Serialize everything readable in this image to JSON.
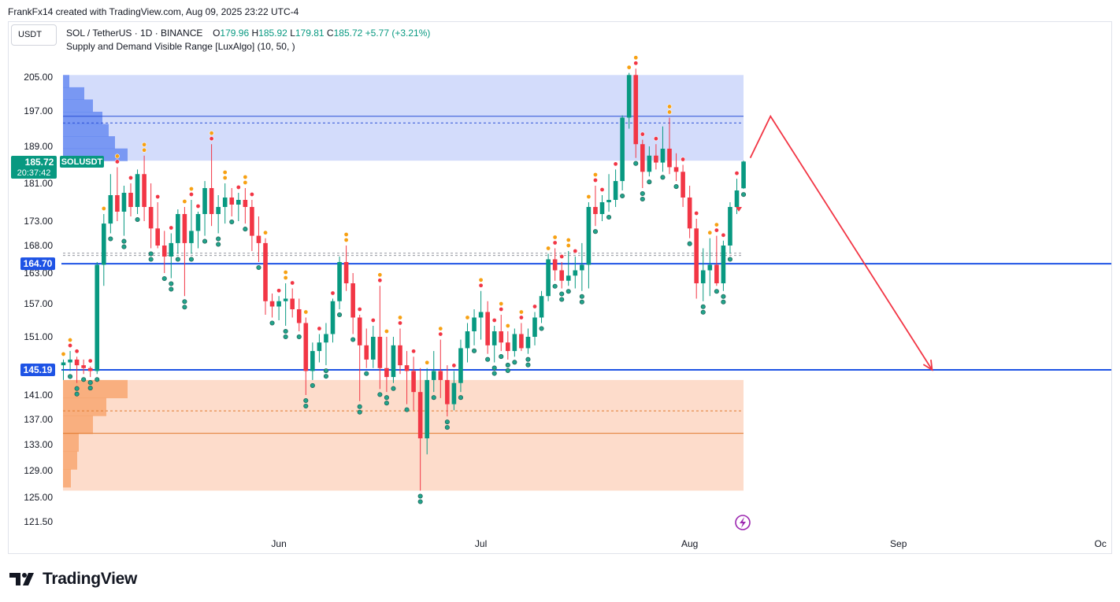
{
  "header": {
    "caption": "FrankFx14 created with TradingView.com, Aug 09, 2025 23:22 UTC-4"
  },
  "toolbar": {
    "currency": "USDT"
  },
  "legend": {
    "symbol": "SOL / TetherUS · 1D · BINANCE",
    "o_label": "O",
    "o": "179.96",
    "h_label": "H",
    "h": "185.92",
    "l_label": "L",
    "l": "179.81",
    "c_label": "C",
    "c": "185.72",
    "change": "+5.77 (+3.21%)",
    "indicator": "Supply and Demand Visible Range [LuxAlgo] (10, 50, )"
  },
  "price_tag": {
    "price": "185.72",
    "countdown": "20:37:42",
    "symbol": "SOLUSDT"
  },
  "level_labels": [
    {
      "price": 164.7,
      "text": "164.70"
    },
    {
      "price": 145.19,
      "text": "145.19"
    }
  ],
  "footer": {
    "brand": "TradingView"
  },
  "colors": {
    "up": "#089981",
    "down": "#f23645",
    "supply_zone": "#d3dcfb",
    "supply_profile": "#5b82f0",
    "demand_zone": "#fddccb",
    "demand_profile": "#f7a066",
    "level_line": "#1e53e5",
    "projection": "#f23645",
    "dot_orange": "#f7a113"
  },
  "chart_data": {
    "type": "candlestick",
    "symbol": "SOL / TetherUS",
    "timeframe": "1D",
    "y_ticks": [
      205.0,
      197.0,
      189.0,
      181.0,
      173.0,
      168.0,
      163.0,
      157.0,
      151.0,
      145.19,
      141.0,
      137.0,
      133.0,
      129.0,
      125.0,
      121.5
    ],
    "x_labels": [
      {
        "date": "2025-06-01",
        "label": "Jun"
      },
      {
        "date": "2025-07-01",
        "label": "Jul"
      },
      {
        "date": "2025-08-01",
        "label": "Aug"
      },
      {
        "date": "2025-09-01",
        "label": "Sep"
      },
      {
        "date": "2025-10-01",
        "label": "Oc"
      }
    ],
    "ohlc": [
      {
        "d": "2025-04-30",
        "o": 146.0,
        "h": 147.0,
        "l": 143.5,
        "c": 146.5
      },
      {
        "d": "2025-05-01",
        "o": 146.5,
        "h": 148.5,
        "l": 145.0,
        "c": 147.0
      },
      {
        "d": "2025-05-02",
        "o": 147.0,
        "h": 147.5,
        "l": 143.0,
        "c": 146.0
      },
      {
        "d": "2025-05-03",
        "o": 146.0,
        "h": 147.0,
        "l": 144.5,
        "c": 145.5
      },
      {
        "d": "2025-05-04",
        "o": 145.5,
        "h": 145.8,
        "l": 144.0,
        "c": 145.0
      },
      {
        "d": "2025-05-05",
        "o": 145.0,
        "h": 165.0,
        "l": 144.5,
        "c": 164.5
      },
      {
        "d": "2025-05-06",
        "o": 164.5,
        "h": 174.5,
        "l": 160.5,
        "c": 172.5
      },
      {
        "d": "2025-05-07",
        "o": 172.5,
        "h": 183.0,
        "l": 170.5,
        "c": 178.5
      },
      {
        "d": "2025-05-08",
        "o": 178.5,
        "h": 184.5,
        "l": 173.0,
        "c": 175.0
      },
      {
        "d": "2025-05-09",
        "o": 175.0,
        "h": 180.5,
        "l": 170.0,
        "c": 179.0
      },
      {
        "d": "2025-05-10",
        "o": 179.0,
        "h": 181.0,
        "l": 174.0,
        "c": 176.0
      },
      {
        "d": "2025-05-11",
        "o": 176.0,
        "h": 184.0,
        "l": 174.5,
        "c": 183.0
      },
      {
        "d": "2025-05-12",
        "o": 183.0,
        "h": 187.0,
        "l": 173.0,
        "c": 176.0
      },
      {
        "d": "2025-05-13",
        "o": 176.0,
        "h": 181.0,
        "l": 167.5,
        "c": 171.5
      },
      {
        "d": "2025-05-14",
        "o": 171.5,
        "h": 177.0,
        "l": 167.5,
        "c": 168.0
      },
      {
        "d": "2025-05-15",
        "o": 168.0,
        "h": 171.0,
        "l": 163.0,
        "c": 166.0
      },
      {
        "d": "2025-05-16",
        "o": 166.0,
        "h": 170.5,
        "l": 162.0,
        "c": 168.5
      },
      {
        "d": "2025-05-17",
        "o": 168.5,
        "h": 175.5,
        "l": 166.5,
        "c": 174.5
      },
      {
        "d": "2025-05-18",
        "o": 174.5,
        "h": 176.0,
        "l": 158.5,
        "c": 168.5
      },
      {
        "d": "2025-05-19",
        "o": 168.5,
        "h": 177.5,
        "l": 166.5,
        "c": 171.0
      },
      {
        "d": "2025-05-20",
        "o": 171.0,
        "h": 175.0,
        "l": 167.5,
        "c": 174.5
      },
      {
        "d": "2025-05-21",
        "o": 174.5,
        "h": 181.5,
        "l": 170.0,
        "c": 180.0
      },
      {
        "d": "2025-05-22",
        "o": 180.0,
        "h": 189.5,
        "l": 172.0,
        "c": 174.5
      },
      {
        "d": "2025-05-23",
        "o": 174.5,
        "h": 178.5,
        "l": 170.5,
        "c": 176.0
      },
      {
        "d": "2025-05-24",
        "o": 176.0,
        "h": 181.0,
        "l": 172.5,
        "c": 178.0
      },
      {
        "d": "2025-05-25",
        "o": 178.0,
        "h": 180.0,
        "l": 174.0,
        "c": 176.5
      },
      {
        "d": "2025-05-26",
        "o": 176.5,
        "h": 179.0,
        "l": 173.0,
        "c": 177.5
      },
      {
        "d": "2025-05-27",
        "o": 177.5,
        "h": 180.0,
        "l": 172.5,
        "c": 176.0
      },
      {
        "d": "2025-05-28",
        "o": 176.0,
        "h": 177.5,
        "l": 167.0,
        "c": 170.0
      },
      {
        "d": "2025-05-29",
        "o": 170.0,
        "h": 174.0,
        "l": 165.0,
        "c": 168.5
      },
      {
        "d": "2025-05-30",
        "o": 168.5,
        "h": 169.5,
        "l": 155.0,
        "c": 157.5
      },
      {
        "d": "2025-05-31",
        "o": 157.5,
        "h": 159.0,
        "l": 154.5,
        "c": 156.5
      },
      {
        "d": "2025-06-01",
        "o": 156.5,
        "h": 158.5,
        "l": 154.0,
        "c": 157.5
      },
      {
        "d": "2025-06-02",
        "o": 157.5,
        "h": 161.0,
        "l": 153.0,
        "c": 158.0
      },
      {
        "d": "2025-06-03",
        "o": 158.0,
        "h": 160.0,
        "l": 154.5,
        "c": 156.0
      },
      {
        "d": "2025-06-04",
        "o": 156.0,
        "h": 158.0,
        "l": 152.0,
        "c": 153.5
      },
      {
        "d": "2025-06-05",
        "o": 153.5,
        "h": 154.5,
        "l": 141.0,
        "c": 145.0
      },
      {
        "d": "2025-06-06",
        "o": 145.0,
        "h": 150.0,
        "l": 143.5,
        "c": 148.5
      },
      {
        "d": "2025-06-07",
        "o": 148.5,
        "h": 151.5,
        "l": 146.5,
        "c": 150.0
      },
      {
        "d": "2025-06-08",
        "o": 150.0,
        "h": 153.5,
        "l": 146.0,
        "c": 151.5
      },
      {
        "d": "2025-06-09",
        "o": 151.5,
        "h": 158.0,
        "l": 150.0,
        "c": 157.5
      },
      {
        "d": "2025-06-10",
        "o": 157.5,
        "h": 166.0,
        "l": 156.0,
        "c": 165.0
      },
      {
        "d": "2025-06-11",
        "o": 165.0,
        "h": 168.0,
        "l": 159.5,
        "c": 161.0
      },
      {
        "d": "2025-06-12",
        "o": 161.0,
        "h": 163.0,
        "l": 151.5,
        "c": 154.5
      },
      {
        "d": "2025-06-13",
        "o": 154.5,
        "h": 155.0,
        "l": 140.0,
        "c": 149.5
      },
      {
        "d": "2025-06-14",
        "o": 149.5,
        "h": 152.5,
        "l": 145.5,
        "c": 147.0
      },
      {
        "d": "2025-06-15",
        "o": 147.0,
        "h": 153.0,
        "l": 145.5,
        "c": 151.0
      },
      {
        "d": "2025-06-16",
        "o": 151.0,
        "h": 160.5,
        "l": 142.0,
        "c": 145.5
      },
      {
        "d": "2025-06-17",
        "o": 145.5,
        "h": 151.0,
        "l": 141.5,
        "c": 144.0
      },
      {
        "d": "2025-06-18",
        "o": 144.0,
        "h": 151.0,
        "l": 143.0,
        "c": 149.5
      },
      {
        "d": "2025-06-19",
        "o": 149.5,
        "h": 152.5,
        "l": 144.5,
        "c": 146.0
      },
      {
        "d": "2025-06-20",
        "o": 146.0,
        "h": 148.5,
        "l": 139.5,
        "c": 145.0
      },
      {
        "d": "2025-06-21",
        "o": 145.0,
        "h": 147.5,
        "l": 138.5,
        "c": 141.5
      },
      {
        "d": "2025-06-22",
        "o": 141.5,
        "h": 145.5,
        "l": 126.0,
        "c": 134.0
      },
      {
        "d": "2025-06-23",
        "o": 134.0,
        "h": 145.5,
        "l": 131.5,
        "c": 143.5
      },
      {
        "d": "2025-06-24",
        "o": 143.5,
        "h": 148.5,
        "l": 141.5,
        "c": 145.0
      },
      {
        "d": "2025-06-25",
        "o": 145.0,
        "h": 150.5,
        "l": 140.5,
        "c": 143.5
      },
      {
        "d": "2025-06-26",
        "o": 143.5,
        "h": 146.0,
        "l": 137.5,
        "c": 139.5
      },
      {
        "d": "2025-06-27",
        "o": 139.5,
        "h": 145.0,
        "l": 138.5,
        "c": 143.0
      },
      {
        "d": "2025-06-28",
        "o": 143.0,
        "h": 150.5,
        "l": 141.5,
        "c": 149.0
      },
      {
        "d": "2025-06-29",
        "o": 149.0,
        "h": 153.5,
        "l": 146.5,
        "c": 152.0
      },
      {
        "d": "2025-06-30",
        "o": 152.0,
        "h": 156.0,
        "l": 149.5,
        "c": 154.5
      },
      {
        "d": "2025-07-01",
        "o": 154.5,
        "h": 159.5,
        "l": 150.5,
        "c": 155.5
      },
      {
        "d": "2025-07-02",
        "o": 155.5,
        "h": 157.5,
        "l": 148.0,
        "c": 149.5
      },
      {
        "d": "2025-07-03",
        "o": 149.5,
        "h": 153.0,
        "l": 146.5,
        "c": 152.0
      },
      {
        "d": "2025-07-04",
        "o": 152.0,
        "h": 155.0,
        "l": 148.5,
        "c": 150.0
      },
      {
        "d": "2025-07-05",
        "o": 150.0,
        "h": 152.0,
        "l": 147.0,
        "c": 148.5
      },
      {
        "d": "2025-07-06",
        "o": 148.5,
        "h": 152.5,
        "l": 147.5,
        "c": 151.5
      },
      {
        "d": "2025-07-07",
        "o": 151.5,
        "h": 153.5,
        "l": 148.5,
        "c": 149.0
      },
      {
        "d": "2025-07-08",
        "o": 149.0,
        "h": 152.5,
        "l": 148.0,
        "c": 151.0
      },
      {
        "d": "2025-07-09",
        "o": 151.0,
        "h": 155.5,
        "l": 149.5,
        "c": 154.5
      },
      {
        "d": "2025-07-10",
        "o": 154.5,
        "h": 159.5,
        "l": 153.5,
        "c": 158.5
      },
      {
        "d": "2025-07-11",
        "o": 158.5,
        "h": 166.5,
        "l": 157.5,
        "c": 165.5
      },
      {
        "d": "2025-07-12",
        "o": 165.5,
        "h": 167.5,
        "l": 161.5,
        "c": 163.5
      },
      {
        "d": "2025-07-13",
        "o": 163.5,
        "h": 165.0,
        "l": 160.0,
        "c": 161.5
      },
      {
        "d": "2025-07-14",
        "o": 161.5,
        "h": 167.0,
        "l": 160.5,
        "c": 162.5
      },
      {
        "d": "2025-07-15",
        "o": 162.5,
        "h": 166.0,
        "l": 160.0,
        "c": 163.5
      },
      {
        "d": "2025-07-16",
        "o": 163.5,
        "h": 168.5,
        "l": 159.5,
        "c": 164.5
      },
      {
        "d": "2025-07-17",
        "o": 164.5,
        "h": 177.0,
        "l": 160.0,
        "c": 176.0
      },
      {
        "d": "2025-07-18",
        "o": 176.0,
        "h": 180.5,
        "l": 172.0,
        "c": 174.5
      },
      {
        "d": "2025-07-19",
        "o": 174.5,
        "h": 178.5,
        "l": 173.0,
        "c": 177.0
      },
      {
        "d": "2025-07-20",
        "o": 177.0,
        "h": 183.0,
        "l": 175.0,
        "c": 177.5
      },
      {
        "d": "2025-07-21",
        "o": 177.5,
        "h": 184.0,
        "l": 176.0,
        "c": 181.5
      },
      {
        "d": "2025-07-22",
        "o": 181.5,
        "h": 196.0,
        "l": 179.5,
        "c": 195.5
      },
      {
        "d": "2025-07-23",
        "o": 195.5,
        "h": 206.0,
        "l": 193.0,
        "c": 205.5
      },
      {
        "d": "2025-07-24",
        "o": 205.5,
        "h": 207.0,
        "l": 186.5,
        "c": 189.5
      },
      {
        "d": "2025-07-25",
        "o": 189.5,
        "h": 190.5,
        "l": 180.0,
        "c": 183.5
      },
      {
        "d": "2025-07-26",
        "o": 183.5,
        "h": 189.0,
        "l": 182.5,
        "c": 187.0
      },
      {
        "d": "2025-07-27",
        "o": 187.0,
        "h": 189.5,
        "l": 184.0,
        "c": 185.5
      },
      {
        "d": "2025-07-28",
        "o": 185.5,
        "h": 193.5,
        "l": 183.5,
        "c": 188.5
      },
      {
        "d": "2025-07-29",
        "o": 188.5,
        "h": 195.5,
        "l": 183.0,
        "c": 184.5
      },
      {
        "d": "2025-07-30",
        "o": 184.5,
        "h": 187.5,
        "l": 181.5,
        "c": 183.5
      },
      {
        "d": "2025-07-31",
        "o": 183.5,
        "h": 185.0,
        "l": 176.0,
        "c": 178.0
      },
      {
        "d": "2025-08-01",
        "o": 178.0,
        "h": 180.5,
        "l": 169.5,
        "c": 171.5
      },
      {
        "d": "2025-08-02",
        "o": 171.5,
        "h": 173.5,
        "l": 158.0,
        "c": 161.0
      },
      {
        "d": "2025-08-03",
        "o": 161.0,
        "h": 167.5,
        "l": 157.5,
        "c": 163.5
      },
      {
        "d": "2025-08-04",
        "o": 163.5,
        "h": 169.5,
        "l": 158.5,
        "c": 164.5
      },
      {
        "d": "2025-08-05",
        "o": 164.5,
        "h": 170.0,
        "l": 160.5,
        "c": 161.0
      },
      {
        "d": "2025-08-06",
        "o": 161.0,
        "h": 169.0,
        "l": 159.5,
        "c": 168.0
      },
      {
        "d": "2025-08-07",
        "o": 168.0,
        "h": 177.0,
        "l": 166.5,
        "c": 176.0
      },
      {
        "d": "2025-08-08",
        "o": 176.0,
        "h": 182.0,
        "l": 174.5,
        "c": 179.5
      },
      {
        "d": "2025-08-09",
        "o": 179.96,
        "h": 185.92,
        "l": 179.81,
        "c": 185.72
      }
    ],
    "supply_zone": {
      "top": 205.5,
      "bottom": 185.9,
      "level": 195.8,
      "avg": 194.3
    },
    "demand_zone": {
      "top": 143.5,
      "bottom": 126.0,
      "level": 134.8,
      "avg": 138.4
    },
    "equilibrium": {
      "level_a": 166.6,
      "level_b": 166.2
    },
    "horizontal_levels": [
      164.7,
      145.19
    ],
    "projection_path": [
      {
        "d": "2025-08-10",
        "p": 186.5
      },
      {
        "d": "2025-08-13",
        "p": 195.8
      },
      {
        "d": "2025-09-06",
        "p": 145.19
      }
    ]
  }
}
